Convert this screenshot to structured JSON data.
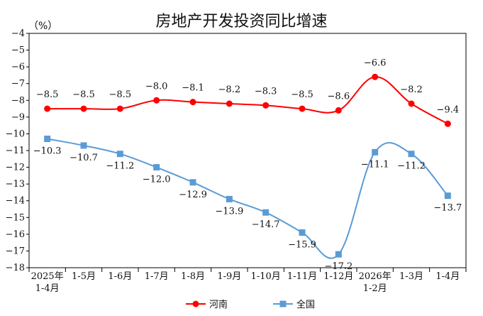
{
  "chart_data": {
    "type": "line",
    "title": "房地产开发投资同比增速",
    "unit": "（%）",
    "categories": [
      [
        "2025年",
        "1-4月"
      ],
      [
        "1-5月"
      ],
      [
        "1-6月"
      ],
      [
        "1-7月"
      ],
      [
        "1-8月"
      ],
      [
        "1-9月"
      ],
      [
        "1-10月"
      ],
      [
        "1-11月"
      ],
      [
        "1-12月"
      ],
      [
        "2026年",
        "1-2月"
      ],
      [
        "1-3月"
      ],
      [
        "1-4月"
      ]
    ],
    "ylim": [
      -18,
      -4
    ],
    "yticks": [
      "-4",
      "-5",
      "-6",
      "-7",
      "-8",
      "-9",
      "-10",
      "-11",
      "-12",
      "-13",
      "-14",
      "-15",
      "-16",
      "-17",
      "-18"
    ],
    "series": [
      {
        "name": "河南",
        "color": "#ff0000",
        "marker": "circle",
        "values": [
          -8.5,
          -8.5,
          -8.5,
          -8.0,
          -8.1,
          -8.2,
          -8.3,
          -8.5,
          -8.6,
          -6.6,
          -8.2,
          -9.4
        ],
        "labels": [
          "-8.5",
          "-8.5",
          "-8.5",
          "-8.0",
          "-8.1",
          "-8.2",
          "-8.3",
          "-8.5",
          "-8.6",
          "-6.6",
          "-8.2",
          "-9.4"
        ]
      },
      {
        "name": "全国",
        "color": "#5b9bd5",
        "marker": "square",
        "values": [
          -10.3,
          -10.7,
          -11.2,
          -12.0,
          -12.9,
          -13.9,
          -14.7,
          -15.9,
          -17.2,
          -11.1,
          -11.2,
          -13.7
        ],
        "labels": [
          "-10.3",
          "-10.7",
          "-11.2",
          "-12.0",
          "-12.9",
          "-13.9",
          "-14.7",
          "-15.9",
          "-17.2",
          "-11.1",
          "-11.2",
          "-13.7"
        ]
      }
    ],
    "grid": false,
    "legend_position": "bottom"
  }
}
